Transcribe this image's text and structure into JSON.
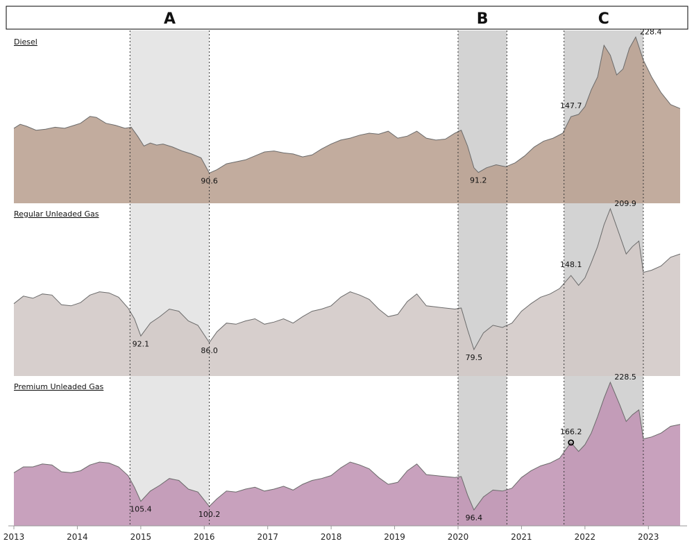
{
  "chart_data": {
    "type": "area",
    "x_range": [
      2013.0,
      2023.5
    ],
    "x_ticks": [
      "2013",
      "2014",
      "2015",
      "2016",
      "2017",
      "2018",
      "2019",
      "2020",
      "2021",
      "2022",
      "2023"
    ],
    "periods": [
      {
        "label": "A",
        "start": 2014.83,
        "end": 2016.08,
        "shade": "#c8c8c8"
      },
      {
        "label": "B",
        "start": 2020.0,
        "end": 2020.77,
        "shade": "#c8c8c8"
      },
      {
        "label": "C",
        "start": 2021.67,
        "end": 2022.92,
        "shade": "#c8c8c8"
      }
    ],
    "series": [
      {
        "name": "Diesel",
        "color": "#b9a091",
        "ylim": [
          60,
          235
        ],
        "points": [
          [
            2013.0,
            136
          ],
          [
            2013.1,
            140
          ],
          [
            2013.2,
            138
          ],
          [
            2013.35,
            134
          ],
          [
            2013.5,
            135
          ],
          [
            2013.65,
            137
          ],
          [
            2013.8,
            136
          ],
          [
            2013.95,
            139
          ],
          [
            2014.05,
            141
          ],
          [
            2014.2,
            148
          ],
          [
            2014.3,
            147
          ],
          [
            2014.45,
            141
          ],
          [
            2014.6,
            139
          ],
          [
            2014.75,
            136
          ],
          [
            2014.85,
            137
          ],
          [
            2014.95,
            128
          ],
          [
            2015.05,
            118
          ],
          [
            2015.15,
            121
          ],
          [
            2015.25,
            119
          ],
          [
            2015.35,
            120
          ],
          [
            2015.5,
            117
          ],
          [
            2015.65,
            113
          ],
          [
            2015.8,
            110
          ],
          [
            2015.95,
            106
          ],
          [
            2016.08,
            90.6
          ],
          [
            2016.2,
            94
          ],
          [
            2016.35,
            100
          ],
          [
            2016.5,
            102
          ],
          [
            2016.65,
            104
          ],
          [
            2016.8,
            108
          ],
          [
            2016.95,
            112
          ],
          [
            2017.1,
            113
          ],
          [
            2017.25,
            111
          ],
          [
            2017.4,
            110
          ],
          [
            2017.55,
            107
          ],
          [
            2017.7,
            109
          ],
          [
            2017.85,
            115
          ],
          [
            2018.0,
            120
          ],
          [
            2018.15,
            124
          ],
          [
            2018.3,
            126
          ],
          [
            2018.45,
            129
          ],
          [
            2018.6,
            131
          ],
          [
            2018.75,
            130
          ],
          [
            2018.9,
            133
          ],
          [
            2019.05,
            126
          ],
          [
            2019.2,
            128
          ],
          [
            2019.35,
            133
          ],
          [
            2019.5,
            126
          ],
          [
            2019.65,
            124
          ],
          [
            2019.8,
            125
          ],
          [
            2019.95,
            131
          ],
          [
            2020.05,
            134
          ],
          [
            2020.15,
            118
          ],
          [
            2020.25,
            96
          ],
          [
            2020.32,
            91.2
          ],
          [
            2020.45,
            96
          ],
          [
            2020.6,
            99
          ],
          [
            2020.75,
            97
          ],
          [
            2020.9,
            101
          ],
          [
            2021.05,
            108
          ],
          [
            2021.2,
            117
          ],
          [
            2021.35,
            123
          ],
          [
            2021.5,
            126
          ],
          [
            2021.65,
            131
          ],
          [
            2021.78,
            147.7
          ],
          [
            2021.9,
            150
          ],
          [
            2022.0,
            158
          ],
          [
            2022.1,
            175
          ],
          [
            2022.2,
            188
          ],
          [
            2022.3,
            220
          ],
          [
            2022.4,
            210
          ],
          [
            2022.5,
            190
          ],
          [
            2022.6,
            196
          ],
          [
            2022.7,
            217
          ],
          [
            2022.8,
            228.4
          ],
          [
            2022.92,
            205
          ],
          [
            2023.05,
            188
          ],
          [
            2023.2,
            172
          ],
          [
            2023.35,
            160
          ],
          [
            2023.5,
            156
          ]
        ],
        "annotations": [
          {
            "x": 2016.08,
            "y": 90.6,
            "text": "90.6",
            "pos": "below"
          },
          {
            "x": 2020.32,
            "y": 91.2,
            "text": "91.2",
            "pos": "below"
          },
          {
            "x": 2021.78,
            "y": 147.7,
            "text": "147.7",
            "pos": "above"
          },
          {
            "x": 2022.8,
            "y": 228.4,
            "text": "228.4",
            "pos": "right"
          }
        ]
      },
      {
        "name": "Regular Unleaded Gas",
        "color": "#d2c8c6",
        "ylim": [
          55,
          215
        ],
        "points": [
          [
            2013.0,
            122
          ],
          [
            2013.15,
            129
          ],
          [
            2013.3,
            127
          ],
          [
            2013.45,
            131
          ],
          [
            2013.6,
            130
          ],
          [
            2013.75,
            121
          ],
          [
            2013.9,
            120
          ],
          [
            2014.05,
            123
          ],
          [
            2014.2,
            130
          ],
          [
            2014.35,
            133
          ],
          [
            2014.5,
            132
          ],
          [
            2014.65,
            128
          ],
          [
            2014.8,
            118
          ],
          [
            2014.9,
            108
          ],
          [
            2015.0,
            92.1
          ],
          [
            2015.15,
            104
          ],
          [
            2015.3,
            110
          ],
          [
            2015.45,
            117
          ],
          [
            2015.6,
            115
          ],
          [
            2015.75,
            106
          ],
          [
            2015.9,
            102
          ],
          [
            2016.08,
            86.0
          ],
          [
            2016.2,
            96
          ],
          [
            2016.35,
            104
          ],
          [
            2016.5,
            103
          ],
          [
            2016.65,
            106
          ],
          [
            2016.8,
            108
          ],
          [
            2016.95,
            103
          ],
          [
            2017.1,
            105
          ],
          [
            2017.25,
            108
          ],
          [
            2017.4,
            104
          ],
          [
            2017.55,
            110
          ],
          [
            2017.7,
            115
          ],
          [
            2017.85,
            117
          ],
          [
            2018.0,
            120
          ],
          [
            2018.15,
            128
          ],
          [
            2018.3,
            133
          ],
          [
            2018.45,
            130
          ],
          [
            2018.6,
            126
          ],
          [
            2018.75,
            117
          ],
          [
            2018.9,
            110
          ],
          [
            2019.05,
            112
          ],
          [
            2019.2,
            124
          ],
          [
            2019.35,
            131
          ],
          [
            2019.5,
            120
          ],
          [
            2019.65,
            119
          ],
          [
            2019.8,
            118
          ],
          [
            2019.95,
            117
          ],
          [
            2020.05,
            118
          ],
          [
            2020.15,
            98
          ],
          [
            2020.25,
            79.5
          ],
          [
            2020.4,
            95
          ],
          [
            2020.55,
            102
          ],
          [
            2020.7,
            100
          ],
          [
            2020.85,
            104
          ],
          [
            2021.0,
            115
          ],
          [
            2021.15,
            122
          ],
          [
            2021.3,
            128
          ],
          [
            2021.45,
            131
          ],
          [
            2021.6,
            136
          ],
          [
            2021.78,
            148.1
          ],
          [
            2021.9,
            139
          ],
          [
            2022.0,
            146
          ],
          [
            2022.1,
            160
          ],
          [
            2022.2,
            175
          ],
          [
            2022.3,
            195
          ],
          [
            2022.4,
            209.9
          ],
          [
            2022.55,
            185
          ],
          [
            2022.65,
            168
          ],
          [
            2022.75,
            175
          ],
          [
            2022.85,
            180
          ],
          [
            2022.92,
            151
          ],
          [
            2023.05,
            153
          ],
          [
            2023.2,
            157
          ],
          [
            2023.35,
            165
          ],
          [
            2023.5,
            168
          ]
        ],
        "annotations": [
          {
            "x": 2015.0,
            "y": 92.1,
            "text": "92.1",
            "pos": "below"
          },
          {
            "x": 2016.08,
            "y": 86.0,
            "text": "86.0",
            "pos": "below"
          },
          {
            "x": 2020.25,
            "y": 79.5,
            "text": "79.5",
            "pos": "below"
          },
          {
            "x": 2021.78,
            "y": 148.1,
            "text": "148.1",
            "pos": "above"
          },
          {
            "x": 2022.4,
            "y": 209.9,
            "text": "209.9",
            "pos": "right"
          }
        ]
      },
      {
        "name": "Premium Unleaded Gas",
        "color": "#c094b4",
        "ylim": [
          80,
          235
        ],
        "points": [
          [
            2013.0,
            135
          ],
          [
            2013.15,
            141
          ],
          [
            2013.3,
            141
          ],
          [
            2013.45,
            144
          ],
          [
            2013.6,
            143
          ],
          [
            2013.75,
            136
          ],
          [
            2013.9,
            135
          ],
          [
            2014.05,
            137
          ],
          [
            2014.2,
            143
          ],
          [
            2014.35,
            146
          ],
          [
            2014.5,
            145
          ],
          [
            2014.65,
            141
          ],
          [
            2014.8,
            132
          ],
          [
            2014.9,
            120
          ],
          [
            2015.0,
            105.4
          ],
          [
            2015.15,
            116
          ],
          [
            2015.3,
            122
          ],
          [
            2015.45,
            129
          ],
          [
            2015.6,
            127
          ],
          [
            2015.75,
            118
          ],
          [
            2015.9,
            115
          ],
          [
            2016.08,
            100.2
          ],
          [
            2016.2,
            108
          ],
          [
            2016.35,
            116
          ],
          [
            2016.5,
            115
          ],
          [
            2016.65,
            118
          ],
          [
            2016.8,
            120
          ],
          [
            2016.95,
            116
          ],
          [
            2017.1,
            118
          ],
          [
            2017.25,
            121
          ],
          [
            2017.4,
            117
          ],
          [
            2017.55,
            123
          ],
          [
            2017.7,
            127
          ],
          [
            2017.85,
            129
          ],
          [
            2018.0,
            132
          ],
          [
            2018.15,
            140
          ],
          [
            2018.3,
            146
          ],
          [
            2018.45,
            143
          ],
          [
            2018.6,
            139
          ],
          [
            2018.75,
            130
          ],
          [
            2018.9,
            123
          ],
          [
            2019.05,
            125
          ],
          [
            2019.2,
            137
          ],
          [
            2019.35,
            144
          ],
          [
            2019.5,
            133
          ],
          [
            2019.65,
            132
          ],
          [
            2019.8,
            131
          ],
          [
            2019.95,
            130
          ],
          [
            2020.05,
            131
          ],
          [
            2020.15,
            112
          ],
          [
            2020.25,
            96.4
          ],
          [
            2020.4,
            110
          ],
          [
            2020.55,
            117
          ],
          [
            2020.7,
            116
          ],
          [
            2020.85,
            119
          ],
          [
            2021.0,
            130
          ],
          [
            2021.15,
            137
          ],
          [
            2021.3,
            142
          ],
          [
            2021.45,
            145
          ],
          [
            2021.6,
            150
          ],
          [
            2021.78,
            166.2
          ],
          [
            2021.9,
            157
          ],
          [
            2022.0,
            164
          ],
          [
            2022.1,
            176
          ],
          [
            2022.2,
            193
          ],
          [
            2022.3,
            212
          ],
          [
            2022.4,
            228.5
          ],
          [
            2022.55,
            205
          ],
          [
            2022.65,
            188
          ],
          [
            2022.75,
            195
          ],
          [
            2022.85,
            200
          ],
          [
            2022.92,
            170
          ],
          [
            2023.05,
            172
          ],
          [
            2023.2,
            176
          ],
          [
            2023.35,
            183
          ],
          [
            2023.5,
            185
          ]
        ],
        "annotations": [
          {
            "x": 2015.0,
            "y": 105.4,
            "text": "105.4",
            "pos": "below"
          },
          {
            "x": 2016.08,
            "y": 100.2,
            "text": "100.2",
            "pos": "below"
          },
          {
            "x": 2020.25,
            "y": 96.4,
            "text": "96.4",
            "pos": "below"
          },
          {
            "x": 2021.78,
            "y": 166.2,
            "text": "166.2",
            "pos": "above",
            "marker": true
          },
          {
            "x": 2022.4,
            "y": 228.5,
            "text": "228.5",
            "pos": "right"
          }
        ]
      }
    ]
  }
}
